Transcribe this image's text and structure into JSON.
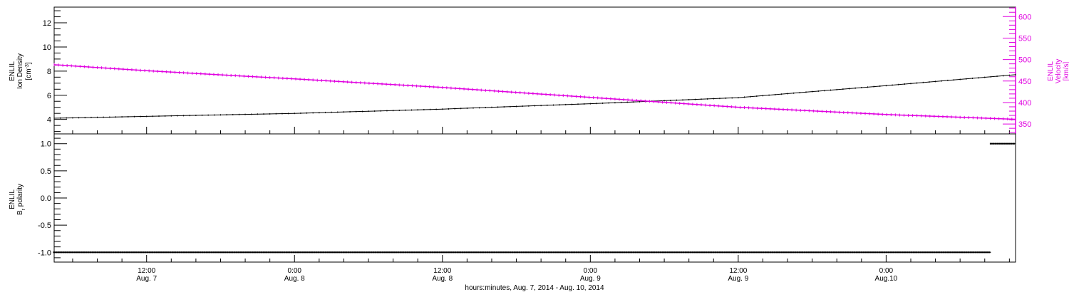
{
  "colors": {
    "density": "#000000",
    "velocity": "#e000e0",
    "polarity": "#000000",
    "frame": "#000000"
  },
  "footer_title": "hours:minutes, Aug.  7, 2014 - Aug. 10, 2014",
  "x_axis": {
    "start_hour": 4.5,
    "end_hour": 82.5,
    "major_ticks": [
      {
        "hour": 12,
        "time": "12:00",
        "date": "Aug. 7"
      },
      {
        "hour": 24,
        "time": "0:00",
        "date": "Aug. 8"
      },
      {
        "hour": 36,
        "time": "12:00",
        "date": "Aug. 8"
      },
      {
        "hour": 48,
        "time": "0:00",
        "date": "Aug. 9"
      },
      {
        "hour": 60,
        "time": "12:00",
        "date": "Aug. 9"
      },
      {
        "hour": 72,
        "time": "0:00",
        "date": "Aug.10"
      }
    ],
    "minor_tick_hours": 2
  },
  "chart_data": [
    {
      "type": "line",
      "panel": "top",
      "y_left": {
        "label_line1": "ENLIL",
        "label_line2": "Ion Density",
        "unit_base": "[cm",
        "unit_sup": "-3",
        "unit_end": "]",
        "ylim": [
          2.8,
          13.3
        ],
        "ticks": [
          4,
          6,
          8,
          10,
          12
        ],
        "tick_labels": [
          "4",
          "6",
          "8",
          "10",
          "12"
        ]
      },
      "y_right": {
        "label_line1": "ENLIL",
        "label_line2": "Velocity",
        "unit": "[km/s]",
        "ylim": [
          327,
          622
        ],
        "ticks": [
          350,
          400,
          450,
          500,
          550,
          600
        ],
        "tick_labels": [
          "350",
          "400",
          "450",
          "500",
          "550",
          "600"
        ],
        "color": "#e000e0"
      },
      "series": [
        {
          "axis": "left",
          "x": [
            4.5,
            12,
            24,
            36,
            48,
            60,
            72,
            82.5
          ],
          "y": [
            4.1,
            4.25,
            4.5,
            4.85,
            5.3,
            5.8,
            6.8,
            7.7
          ]
        },
        {
          "axis": "right",
          "x": [
            4.5,
            12,
            24,
            36,
            48,
            60,
            72,
            82.5
          ],
          "y": [
            488,
            474,
            455,
            435,
            412,
            389,
            372,
            361
          ]
        }
      ]
    },
    {
      "type": "scatter",
      "panel": "bottom",
      "y_left": {
        "label_line1": "ENLIL",
        "label_base": "B",
        "label_sub": "r",
        "label_end": " polarity",
        "ylim": [
          -1.18,
          1.18
        ],
        "ticks": [
          -1.0,
          -0.5,
          0.0,
          0.5,
          1.0
        ],
        "tick_labels": [
          "-1.0",
          "-0.5",
          "0.0",
          "0.5",
          "1.0"
        ]
      },
      "series": [
        {
          "x": [
            4.5,
            80.5
          ],
          "y": [
            -1.0,
            -1.0
          ]
        },
        {
          "x": [
            80.5,
            82.5
          ],
          "y": [
            1.0,
            1.0
          ]
        }
      ]
    }
  ]
}
